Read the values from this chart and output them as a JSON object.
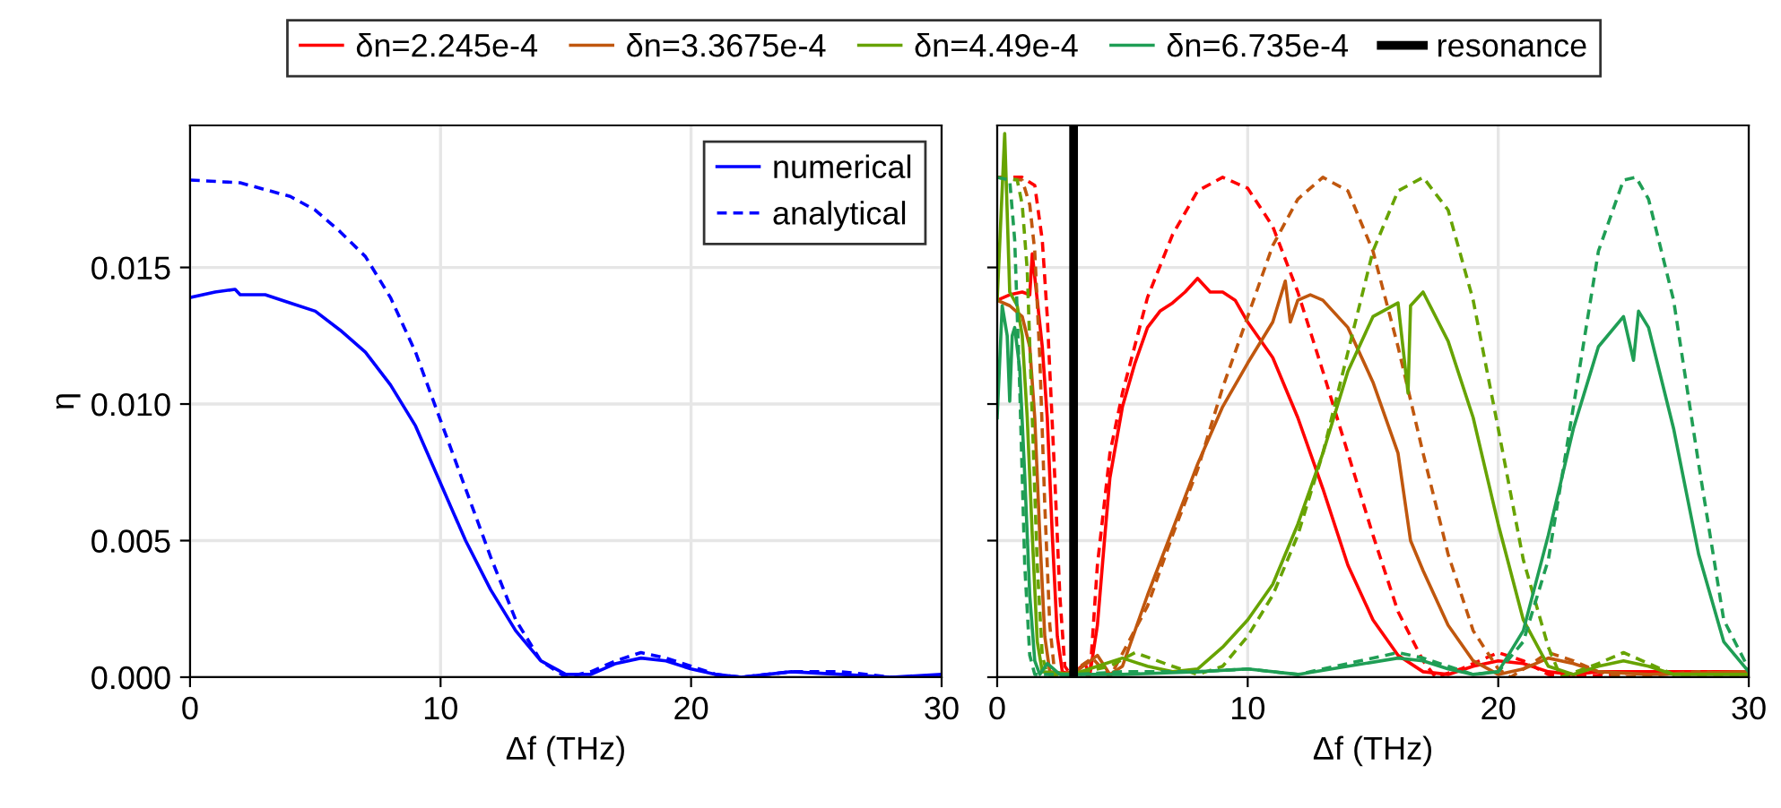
{
  "chart_data": [
    {
      "type": "line",
      "xlabel": "Δf (THz)",
      "ylabel": "η",
      "xlim": [
        0,
        30
      ],
      "xticks": [
        0,
        10,
        20,
        30
      ],
      "ylim": [
        0,
        0.0202
      ],
      "yticks": [
        {
          "value": 0,
          "label": "0.000"
        },
        {
          "value": 0.005,
          "label": "0.005"
        },
        {
          "value": 0.01,
          "label": "0.010"
        },
        {
          "value": 0.015,
          "label": "0.015"
        }
      ],
      "grid": true,
      "legend": "top right",
      "series": [
        {
          "name": "numerical",
          "color": "#0000ff",
          "line_style": "solid",
          "x": [
            0,
            1,
            1.8,
            2,
            3,
            4,
            5,
            6,
            7,
            8,
            9,
            10,
            11,
            12,
            13,
            14,
            15,
            16,
            17,
            18,
            19,
            20,
            21,
            22,
            24,
            26,
            28,
            30
          ],
          "values": [
            0.0139,
            0.0141,
            0.0142,
            0.014,
            0.014,
            0.0137,
            0.0134,
            0.0127,
            0.0119,
            0.0107,
            0.0092,
            0.0071,
            0.005,
            0.0032,
            0.0017,
            0.0006,
            0.0001,
            0.0001,
            0.0005,
            0.0007,
            0.0006,
            0.0003,
            0.0001,
            0,
            0.0002,
            0.0001,
            0,
            0.0001
          ]
        },
        {
          "name": "analytical",
          "color": "#0000ff",
          "line_style": "dashed",
          "x": [
            0,
            2,
            4,
            5,
            6,
            7,
            8,
            9,
            10,
            11,
            12,
            13,
            14,
            15,
            16,
            17,
            18,
            19,
            20,
            21,
            22,
            24,
            26,
            28,
            30
          ],
          "values": [
            0.0182,
            0.0181,
            0.0176,
            0.0171,
            0.0163,
            0.0154,
            0.0139,
            0.0119,
            0.0094,
            0.0069,
            0.0044,
            0.0021,
            0.0006,
            0,
            0.0002,
            0.0006,
            0.0009,
            0.0007,
            0.0004,
            0.0001,
            0,
            0.0002,
            0.0002,
            0,
            0
          ]
        }
      ]
    },
    {
      "type": "line",
      "xlabel": "Δf (THz)",
      "xlim": [
        0,
        30
      ],
      "xticks": [
        0,
        10,
        20,
        30
      ],
      "ylim": [
        0,
        0.0202
      ],
      "yticks": [
        {
          "value": 0,
          "label": null
        },
        {
          "value": 0.005,
          "label": null
        },
        {
          "value": 0.01,
          "label": null
        },
        {
          "value": 0.015,
          "label": null
        }
      ],
      "tick_labels": "x",
      "grid": true,
      "legend": "top",
      "series": [
        {
          "name": "δn=2.245e-4",
          "color": "#ff0000",
          "line_style": "solid",
          "x": [
            0,
            0.5,
            1,
            1.3,
            1.4,
            1.6,
            1.8,
            2,
            2.2,
            2.4,
            2.6,
            3,
            3.5,
            3.7,
            4,
            4.3,
            4.5,
            5,
            5.5,
            6,
            6.5,
            7,
            7.5,
            8,
            8.5,
            9,
            9.5,
            10,
            11,
            12,
            13,
            14,
            15,
            16,
            17,
            18,
            19,
            20,
            21,
            22,
            23,
            24,
            26,
            28,
            30
          ],
          "values": [
            0.0138,
            0.014,
            0.0141,
            0.014,
            0.0155,
            0.0138,
            0.0121,
            0.0095,
            0.0052,
            0.0015,
            0.0002,
            0.0001,
            0.0005,
            0.0001,
            0.0019,
            0.0052,
            0.0073,
            0.0099,
            0.0115,
            0.0128,
            0.0134,
            0.0137,
            0.0141,
            0.0146,
            0.0141,
            0.0141,
            0.0138,
            0.013,
            0.0117,
            0.0095,
            0.0069,
            0.0041,
            0.0021,
            0.0008,
            0.0002,
            0.0001,
            0.0004,
            0.0006,
            0.0005,
            0.0002,
            0.0001,
            0.0002,
            0.0002,
            0.0002,
            0.0002
          ]
        },
        {
          "color": "#ff0000",
          "line_style": "dashed",
          "x": [
            0,
            1,
            1.5,
            1.8,
            2,
            2.3,
            2.5,
            2.7,
            3,
            3.3,
            3.7,
            4,
            4.5,
            5,
            6,
            7,
            8,
            9,
            10,
            11,
            12,
            13,
            14,
            15,
            16,
            17,
            17.5,
            18.5,
            19.5,
            20,
            21,
            22,
            23,
            26,
            28,
            30
          ],
          "values": [
            0.0183,
            0.0183,
            0.018,
            0.016,
            0.0132,
            0.0073,
            0.003,
            0.0004,
            0,
            0.0003,
            0,
            0.0041,
            0.0082,
            0.0104,
            0.0139,
            0.0162,
            0.0178,
            0.0183,
            0.0179,
            0.0165,
            0.0141,
            0.0112,
            0.0082,
            0.0052,
            0.0024,
            0.0006,
            0,
            0.0003,
            0.0007,
            0.0009,
            0.0006,
            0.0001,
            0,
            0.0002,
            0.0002,
            0.0001
          ]
        },
        {
          "name": "δn=3.3675e-4",
          "color": "#c0570e",
          "line_style": "solid",
          "x": [
            0,
            0.5,
            1,
            1.3,
            1.5,
            1.7,
            1.9,
            2.1,
            3,
            4,
            4.5,
            5,
            5.5,
            6,
            7,
            8,
            9,
            10,
            11,
            11.5,
            11.7,
            12,
            12.5,
            13,
            14,
            15,
            16,
            16.5,
            17,
            18,
            19,
            20,
            21,
            22,
            23,
            24,
            26,
            30
          ],
          "values": [
            0.0138,
            0.0136,
            0.0132,
            0.0121,
            0.0095,
            0.0052,
            0.0015,
            0.0002,
            0.0001,
            0.0008,
            0.0001,
            0.0004,
            0.0017,
            0.003,
            0.0054,
            0.0078,
            0.0099,
            0.0115,
            0.013,
            0.0145,
            0.013,
            0.0138,
            0.014,
            0.0138,
            0.0128,
            0.0108,
            0.0082,
            0.005,
            0.0039,
            0.0019,
            0.0006,
            0.0001,
            0.0003,
            0.0007,
            0.0005,
            0.0002,
            0.0001,
            0.0002
          ]
        },
        {
          "color": "#c0570e",
          "line_style": "dashed",
          "x": [
            0,
            1,
            1.3,
            1.5,
            1.7,
            1.9,
            2.1,
            2.3,
            3,
            3.8,
            4.5,
            6,
            7,
            8,
            9,
            10,
            11,
            12,
            13,
            14,
            15,
            16,
            17,
            18,
            19,
            20,
            20.5,
            22,
            23,
            24,
            25,
            28,
            30
          ],
          "values": [
            0.0183,
            0.0182,
            0.0173,
            0.0156,
            0.0117,
            0.0063,
            0.0019,
            0.0001,
            0.0002,
            0.0007,
            0,
            0.0026,
            0.0052,
            0.0076,
            0.0106,
            0.0132,
            0.0158,
            0.0175,
            0.0183,
            0.0178,
            0.0156,
            0.0121,
            0.0082,
            0.0045,
            0.0017,
            0.0003,
            0,
            0.0009,
            0.0006,
            0.0002,
            0,
            0.0002,
            0.0001
          ]
        },
        {
          "name": "δn=4.49e-4",
          "color": "#67a300",
          "line_style": "solid",
          "x": [
            0,
            0.3,
            0.5,
            0.8,
            1,
            1.2,
            1.4,
            1.6,
            1.8,
            3,
            4,
            5,
            6,
            7,
            8,
            9,
            10,
            11,
            12,
            13,
            14,
            15,
            16,
            16.4,
            16.5,
            17,
            18,
            19,
            20,
            21,
            22,
            23,
            24,
            25,
            26,
            27,
            30
          ],
          "values": [
            0.0138,
            0.0199,
            0.0141,
            0.0136,
            0.0125,
            0.0095,
            0.0052,
            0.0013,
            0.0002,
            0.0001,
            0.0004,
            0.0007,
            0.0004,
            0.0002,
            0.0003,
            0.0011,
            0.0021,
            0.0034,
            0.0056,
            0.0082,
            0.0112,
            0.0132,
            0.0137,
            0.0104,
            0.0136,
            0.0141,
            0.0123,
            0.0095,
            0.0056,
            0.0021,
            0.0004,
            0.0001,
            0.0004,
            0.0006,
            0.0004,
            0.0001,
            0.0001
          ]
        },
        {
          "color": "#67a300",
          "line_style": "dashed",
          "x": [
            0,
            0.8,
            1,
            1.2,
            1.4,
            1.6,
            1.8,
            2,
            3,
            4.5,
            5.5,
            7,
            8,
            9,
            10,
            11,
            12,
            13,
            14,
            15,
            16,
            17,
            18,
            19,
            20,
            21,
            22,
            22.5,
            24,
            25,
            26,
            27,
            30
          ],
          "values": [
            0.0183,
            0.0182,
            0.0173,
            0.0149,
            0.0095,
            0.0041,
            0.0008,
            0.0001,
            0.0001,
            0.0004,
            0.0009,
            0.0004,
            0.0001,
            0.0004,
            0.0015,
            0.003,
            0.0052,
            0.0082,
            0.0119,
            0.0156,
            0.0178,
            0.0183,
            0.0171,
            0.0138,
            0.0091,
            0.0043,
            0.0011,
            0,
            0.0005,
            0.0009,
            0.0005,
            0.0001,
            0.0001
          ]
        },
        {
          "name": "δn=6.735e-4",
          "color": "#1f9e55",
          "line_style": "solid",
          "x": [
            0,
            0.2,
            0.4,
            0.5,
            0.6,
            0.7,
            0.9,
            1.1,
            1.3,
            1.5,
            1.7,
            2,
            2.5,
            5,
            8,
            10,
            12,
            14,
            16,
            17,
            18,
            19,
            20,
            21,
            22,
            23,
            24,
            25,
            25.4,
            25.6,
            26,
            27,
            28,
            29,
            30
          ],
          "values": [
            0.0095,
            0.0136,
            0.0125,
            0.0101,
            0.0125,
            0.0128,
            0.0113,
            0.0074,
            0.003,
            0.0006,
            0.0001,
            0.0005,
            0.0001,
            0.0001,
            0.0002,
            0.0003,
            0.0001,
            0.0004,
            0.0007,
            0.0006,
            0.0003,
            0.0001,
            0.0002,
            0.0017,
            0.0052,
            0.0091,
            0.0121,
            0.0132,
            0.0116,
            0.0134,
            0.0128,
            0.0091,
            0.0045,
            0.0013,
            0.0002
          ]
        },
        {
          "color": "#1f9e55",
          "line_style": "dashed",
          "x": [
            0,
            0.5,
            0.7,
            0.9,
            1.1,
            1.3,
            1.5,
            3,
            3.05,
            3.1,
            5,
            8,
            10,
            12,
            14,
            16,
            17,
            18,
            19,
            20,
            21,
            22,
            23,
            24,
            25,
            25.5,
            26,
            27,
            28,
            29,
            30
          ],
          "values": [
            0.0183,
            0.0182,
            0.016,
            0.0106,
            0.0041,
            0.0008,
            0.0001,
            0.0001,
            0.006,
            0.0001,
            0.0002,
            0.0002,
            0.0003,
            0.0001,
            0.0005,
            0.0009,
            0.0007,
            0.0004,
            0.0001,
            0.0002,
            0.0013,
            0.0043,
            0.0099,
            0.0156,
            0.0182,
            0.0183,
            0.0175,
            0.0138,
            0.0078,
            0.0021,
            0.0003
          ]
        }
      ],
      "ref_lines": [
        {
          "axis": "x",
          "value": 3.05,
          "label": "resonance",
          "color": "#000000"
        }
      ]
    }
  ]
}
